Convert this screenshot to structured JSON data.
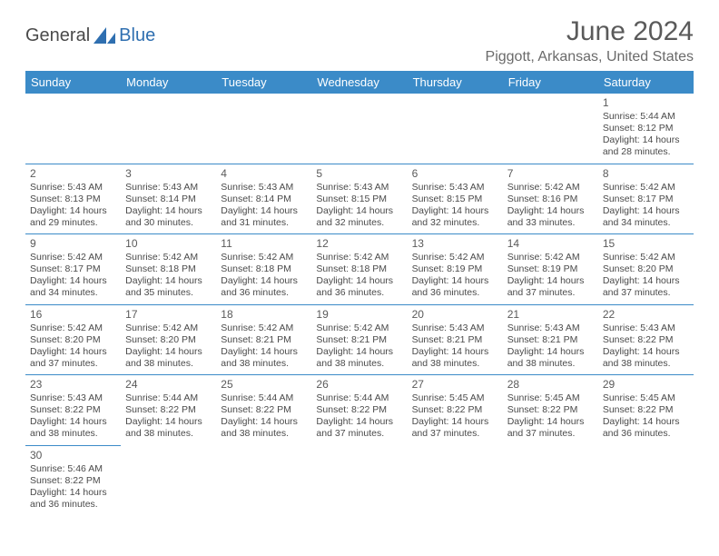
{
  "brand": {
    "part1": "General",
    "part2": "Blue"
  },
  "title": "June 2024",
  "location": "Piggott, Arkansas, United States",
  "colors": {
    "header_bg": "#3b8bc8",
    "header_fg": "#ffffff",
    "border": "#3b8bc8",
    "text": "#4a4a4a",
    "title": "#5a5a5a",
    "location": "#6a6a6a",
    "logo_gray": "#4a4a4a",
    "logo_blue": "#2f6fb0"
  },
  "dayHeaders": [
    "Sunday",
    "Monday",
    "Tuesday",
    "Wednesday",
    "Thursday",
    "Friday",
    "Saturday"
  ],
  "weeks": [
    [
      null,
      null,
      null,
      null,
      null,
      null,
      {
        "n": "1",
        "sr": "5:44 AM",
        "ss": "8:12 PM",
        "dl": "14 hours and 28 minutes."
      }
    ],
    [
      {
        "n": "2",
        "sr": "5:43 AM",
        "ss": "8:13 PM",
        "dl": "14 hours and 29 minutes."
      },
      {
        "n": "3",
        "sr": "5:43 AM",
        "ss": "8:14 PM",
        "dl": "14 hours and 30 minutes."
      },
      {
        "n": "4",
        "sr": "5:43 AM",
        "ss": "8:14 PM",
        "dl": "14 hours and 31 minutes."
      },
      {
        "n": "5",
        "sr": "5:43 AM",
        "ss": "8:15 PM",
        "dl": "14 hours and 32 minutes."
      },
      {
        "n": "6",
        "sr": "5:43 AM",
        "ss": "8:15 PM",
        "dl": "14 hours and 32 minutes."
      },
      {
        "n": "7",
        "sr": "5:42 AM",
        "ss": "8:16 PM",
        "dl": "14 hours and 33 minutes."
      },
      {
        "n": "8",
        "sr": "5:42 AM",
        "ss": "8:17 PM",
        "dl": "14 hours and 34 minutes."
      }
    ],
    [
      {
        "n": "9",
        "sr": "5:42 AM",
        "ss": "8:17 PM",
        "dl": "14 hours and 34 minutes."
      },
      {
        "n": "10",
        "sr": "5:42 AM",
        "ss": "8:18 PM",
        "dl": "14 hours and 35 minutes."
      },
      {
        "n": "11",
        "sr": "5:42 AM",
        "ss": "8:18 PM",
        "dl": "14 hours and 36 minutes."
      },
      {
        "n": "12",
        "sr": "5:42 AM",
        "ss": "8:18 PM",
        "dl": "14 hours and 36 minutes."
      },
      {
        "n": "13",
        "sr": "5:42 AM",
        "ss": "8:19 PM",
        "dl": "14 hours and 36 minutes."
      },
      {
        "n": "14",
        "sr": "5:42 AM",
        "ss": "8:19 PM",
        "dl": "14 hours and 37 minutes."
      },
      {
        "n": "15",
        "sr": "5:42 AM",
        "ss": "8:20 PM",
        "dl": "14 hours and 37 minutes."
      }
    ],
    [
      {
        "n": "16",
        "sr": "5:42 AM",
        "ss": "8:20 PM",
        "dl": "14 hours and 37 minutes."
      },
      {
        "n": "17",
        "sr": "5:42 AM",
        "ss": "8:20 PM",
        "dl": "14 hours and 38 minutes."
      },
      {
        "n": "18",
        "sr": "5:42 AM",
        "ss": "8:21 PM",
        "dl": "14 hours and 38 minutes."
      },
      {
        "n": "19",
        "sr": "5:42 AM",
        "ss": "8:21 PM",
        "dl": "14 hours and 38 minutes."
      },
      {
        "n": "20",
        "sr": "5:43 AM",
        "ss": "8:21 PM",
        "dl": "14 hours and 38 minutes."
      },
      {
        "n": "21",
        "sr": "5:43 AM",
        "ss": "8:21 PM",
        "dl": "14 hours and 38 minutes."
      },
      {
        "n": "22",
        "sr": "5:43 AM",
        "ss": "8:22 PM",
        "dl": "14 hours and 38 minutes."
      }
    ],
    [
      {
        "n": "23",
        "sr": "5:43 AM",
        "ss": "8:22 PM",
        "dl": "14 hours and 38 minutes."
      },
      {
        "n": "24",
        "sr": "5:44 AM",
        "ss": "8:22 PM",
        "dl": "14 hours and 38 minutes."
      },
      {
        "n": "25",
        "sr": "5:44 AM",
        "ss": "8:22 PM",
        "dl": "14 hours and 38 minutes."
      },
      {
        "n": "26",
        "sr": "5:44 AM",
        "ss": "8:22 PM",
        "dl": "14 hours and 37 minutes."
      },
      {
        "n": "27",
        "sr": "5:45 AM",
        "ss": "8:22 PM",
        "dl": "14 hours and 37 minutes."
      },
      {
        "n": "28",
        "sr": "5:45 AM",
        "ss": "8:22 PM",
        "dl": "14 hours and 37 minutes."
      },
      {
        "n": "29",
        "sr": "5:45 AM",
        "ss": "8:22 PM",
        "dl": "14 hours and 36 minutes."
      }
    ],
    [
      {
        "n": "30",
        "sr": "5:46 AM",
        "ss": "8:22 PM",
        "dl": "14 hours and 36 minutes."
      },
      null,
      null,
      null,
      null,
      null,
      null
    ]
  ],
  "labels": {
    "sunrise": "Sunrise: ",
    "sunset": "Sunset: ",
    "daylight": "Daylight: "
  }
}
